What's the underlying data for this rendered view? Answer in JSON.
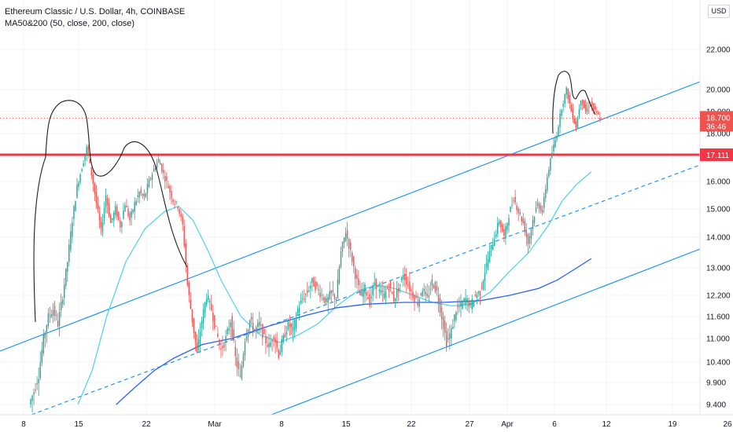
{
  "legend": {
    "title": "Ethereum Classic / U.S. Dollar, 4h, COINBASE",
    "indicator": "MA50&200 (50, close, 200, close)"
  },
  "currency_label": "USD",
  "colors": {
    "up": "#26a69a",
    "down": "#ef5350",
    "ma50": "#5ad2ee",
    "ma200": "#2962ff",
    "channel": "#2196f3",
    "resistance": "#f23645",
    "drawing": "#1e1e1e"
  },
  "chart_data": {
    "type": "candlestick",
    "symbol": "Ethereum Classic / U.S. Dollar",
    "interval": "4h",
    "exchange": "COINBASE",
    "y_ticks": [
      {
        "value": 9.4,
        "label": "9.400"
      },
      {
        "value": 9.9,
        "label": "9.900"
      },
      {
        "value": 10.4,
        "label": "10.400"
      },
      {
        "value": 11.0,
        "label": "11.000"
      },
      {
        "value": 11.6,
        "label": "11.600"
      },
      {
        "value": 12.2,
        "label": "12.200"
      },
      {
        "value": 13.0,
        "label": "13.000"
      },
      {
        "value": 14.0,
        "label": "14.000"
      },
      {
        "value": 15.0,
        "label": "15.000"
      },
      {
        "value": 16.0,
        "label": "16.000"
      },
      {
        "value": 18.0,
        "label": "18.000"
      },
      {
        "value": 19.0,
        "label": "19.000"
      },
      {
        "value": 20.0,
        "label": "20.000"
      },
      {
        "value": 22.0,
        "label": "22.000"
      }
    ],
    "x_ticks": [
      "8",
      "15",
      "22",
      "Mar",
      "8",
      "15",
      "22",
      "27",
      "Apr",
      "6",
      "12",
      "19",
      "26"
    ],
    "last_price": {
      "value": 18.7,
      "label": "18.700",
      "countdown": "36:46"
    },
    "resistance": {
      "value": 17.111,
      "label": "17.111"
    },
    "price_path": [
      [
        0,
        9.4
      ],
      [
        1,
        9.7
      ],
      [
        2,
        10.1
      ],
      [
        3,
        11.0
      ],
      [
        4,
        11.6
      ],
      [
        5,
        11.8
      ],
      [
        6,
        11.4
      ],
      [
        7,
        12.2
      ],
      [
        8,
        13.2
      ],
      [
        9,
        14.6
      ],
      [
        10,
        15.8
      ],
      [
        11,
        16.6
      ],
      [
        12,
        17.4
      ],
      [
        13,
        16.3
      ],
      [
        14,
        15.2
      ],
      [
        15,
        14.2
      ],
      [
        16,
        15.5
      ],
      [
        17,
        14.5
      ],
      [
        18,
        15.0
      ],
      [
        19,
        14.4
      ],
      [
        20,
        15.2
      ],
      [
        21,
        14.6
      ],
      [
        22,
        15.2
      ],
      [
        23,
        15.6
      ],
      [
        24,
        15.4
      ],
      [
        25,
        16.0
      ],
      [
        26,
        16.5
      ],
      [
        27,
        16.9
      ],
      [
        28,
        16.3
      ],
      [
        29,
        15.8
      ],
      [
        30,
        15.3
      ],
      [
        31,
        15.1
      ],
      [
        32,
        14.4
      ],
      [
        33,
        12.5
      ],
      [
        34,
        11.5
      ],
      [
        35,
        10.6
      ],
      [
        36,
        11.5
      ],
      [
        37,
        12.2
      ],
      [
        38,
        11.8
      ],
      [
        39,
        11.2
      ],
      [
        40,
        10.7
      ],
      [
        41,
        11.0
      ],
      [
        42,
        11.5
      ],
      [
        43,
        10.5
      ],
      [
        44,
        10.0
      ],
      [
        45,
        11.0
      ],
      [
        46,
        11.5
      ],
      [
        47,
        11.2
      ],
      [
        48,
        11.4
      ],
      [
        49,
        11.0
      ],
      [
        50,
        10.8
      ],
      [
        51,
        11.1
      ],
      [
        52,
        10.6
      ],
      [
        53,
        11.0
      ],
      [
        54,
        11.4
      ],
      [
        55,
        11.2
      ],
      [
        56,
        11.8
      ],
      [
        57,
        12.1
      ],
      [
        58,
        12.3
      ],
      [
        59,
        12.6
      ],
      [
        60,
        12.4
      ],
      [
        61,
        12.2
      ],
      [
        62,
        12.0
      ],
      [
        63,
        12.3
      ],
      [
        64,
        12.1
      ],
      [
        65,
        13.5
      ],
      [
        66,
        14.2
      ],
      [
        67,
        13.5
      ],
      [
        68,
        12.8
      ],
      [
        69,
        12.2
      ],
      [
        70,
        12.4
      ],
      [
        71,
        12.0
      ],
      [
        72,
        12.6
      ],
      [
        73,
        12.3
      ],
      [
        74,
        12.2
      ],
      [
        75,
        12.5
      ],
      [
        76,
        12.1
      ],
      [
        77,
        12.4
      ],
      [
        78,
        12.8
      ],
      [
        79,
        12.5
      ],
      [
        80,
        12.2
      ],
      [
        81,
        12.0
      ],
      [
        82,
        12.4
      ],
      [
        83,
        12.1
      ],
      [
        84,
        12.6
      ],
      [
        85,
        12.3
      ],
      [
        86,
        11.6
      ],
      [
        87,
        10.9
      ],
      [
        88,
        11.2
      ],
      [
        89,
        11.8
      ],
      [
        90,
        11.9
      ],
      [
        91,
        12.1
      ],
      [
        92,
        11.9
      ],
      [
        93,
        12.2
      ],
      [
        94,
        12.3
      ],
      [
        95,
        12.9
      ],
      [
        96,
        13.5
      ],
      [
        97,
        14.0
      ],
      [
        98,
        14.6
      ],
      [
        99,
        14.0
      ],
      [
        100,
        14.8
      ],
      [
        101,
        15.4
      ],
      [
        102,
        14.9
      ],
      [
        103,
        14.5
      ],
      [
        104,
        13.8
      ],
      [
        105,
        14.6
      ],
      [
        106,
        15.2
      ],
      [
        107,
        14.9
      ],
      [
        108,
        16.2
      ],
      [
        109,
        17.2
      ],
      [
        110,
        18.0
      ],
      [
        111,
        19.2
      ],
      [
        112,
        20.0
      ],
      [
        113,
        19.0
      ],
      [
        114,
        18.3
      ],
      [
        115,
        19.6
      ],
      [
        116,
        19.0
      ],
      [
        117,
        19.4
      ],
      [
        118,
        19.0
      ],
      [
        119,
        18.7
      ]
    ],
    "ma50_path": [
      [
        10,
        9.4
      ],
      [
        13,
        10.2
      ],
      [
        16,
        11.6
      ],
      [
        20,
        13.2
      ],
      [
        24,
        14.3
      ],
      [
        28,
        14.9
      ],
      [
        31,
        15.1
      ],
      [
        34,
        14.6
      ],
      [
        37,
        13.6
      ],
      [
        40,
        12.6
      ],
      [
        44,
        11.6
      ],
      [
        48,
        11.1
      ],
      [
        52,
        10.9
      ],
      [
        56,
        11.1
      ],
      [
        60,
        11.4
      ],
      [
        64,
        11.9
      ],
      [
        68,
        12.3
      ],
      [
        72,
        12.5
      ],
      [
        76,
        12.4
      ],
      [
        80,
        12.2
      ],
      [
        84,
        12.0
      ],
      [
        88,
        11.9
      ],
      [
        92,
        11.95
      ],
      [
        96,
        12.3
      ],
      [
        100,
        12.9
      ],
      [
        104,
        13.5
      ],
      [
        108,
        14.4
      ],
      [
        111,
        15.3
      ],
      [
        114,
        15.9
      ],
      [
        117,
        16.4
      ]
    ],
    "ma200_path": [
      [
        18,
        9.4
      ],
      [
        22,
        9.8
      ],
      [
        26,
        10.2
      ],
      [
        30,
        10.5
      ],
      [
        36,
        10.85
      ],
      [
        42,
        11.0
      ],
      [
        50,
        11.35
      ],
      [
        58,
        11.65
      ],
      [
        64,
        11.85
      ],
      [
        70,
        11.95
      ],
      [
        78,
        12.0
      ],
      [
        86,
        12.0
      ],
      [
        94,
        12.05
      ],
      [
        100,
        12.2
      ],
      [
        106,
        12.4
      ],
      [
        110,
        12.65
      ],
      [
        114,
        13.0
      ],
      [
        117,
        13.3
      ]
    ]
  }
}
